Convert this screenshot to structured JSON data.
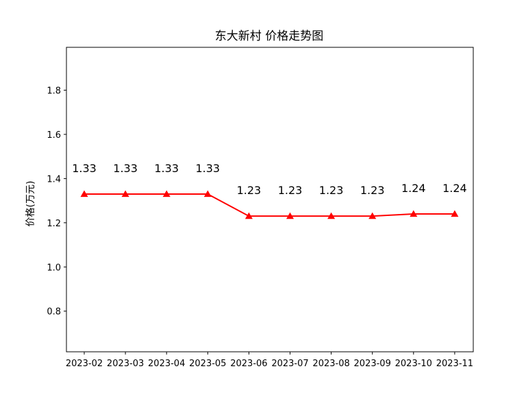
{
  "chart_data": {
    "type": "line",
    "title": "东大新村 价格走势图",
    "xlabel": "",
    "ylabel": "价格(万元)",
    "categories": [
      "2023-02",
      "2023-03",
      "2023-04",
      "2023-05",
      "2023-06",
      "2023-07",
      "2023-08",
      "2023-09",
      "2023-10",
      "2023-11"
    ],
    "series": [
      {
        "values": [
          1.33,
          1.33,
          1.33,
          1.33,
          1.23,
          1.23,
          1.23,
          1.23,
          1.24,
          1.24
        ],
        "color": "#ff0000",
        "marker": "triangle-up"
      }
    ],
    "data_labels": [
      "1.33",
      "1.33",
      "1.33",
      "1.33",
      "1.23",
      "1.23",
      "1.23",
      "1.23",
      "1.24",
      "1.24"
    ],
    "ylim": [
      0.616,
      1.994
    ],
    "yticks": [
      0.8,
      1.0,
      1.2,
      1.4,
      1.6,
      1.8
    ],
    "ytick_labels": [
      "0.8",
      "1.0",
      "1.2",
      "1.4",
      "1.6",
      "1.8"
    ],
    "grid": false,
    "legend": false
  }
}
